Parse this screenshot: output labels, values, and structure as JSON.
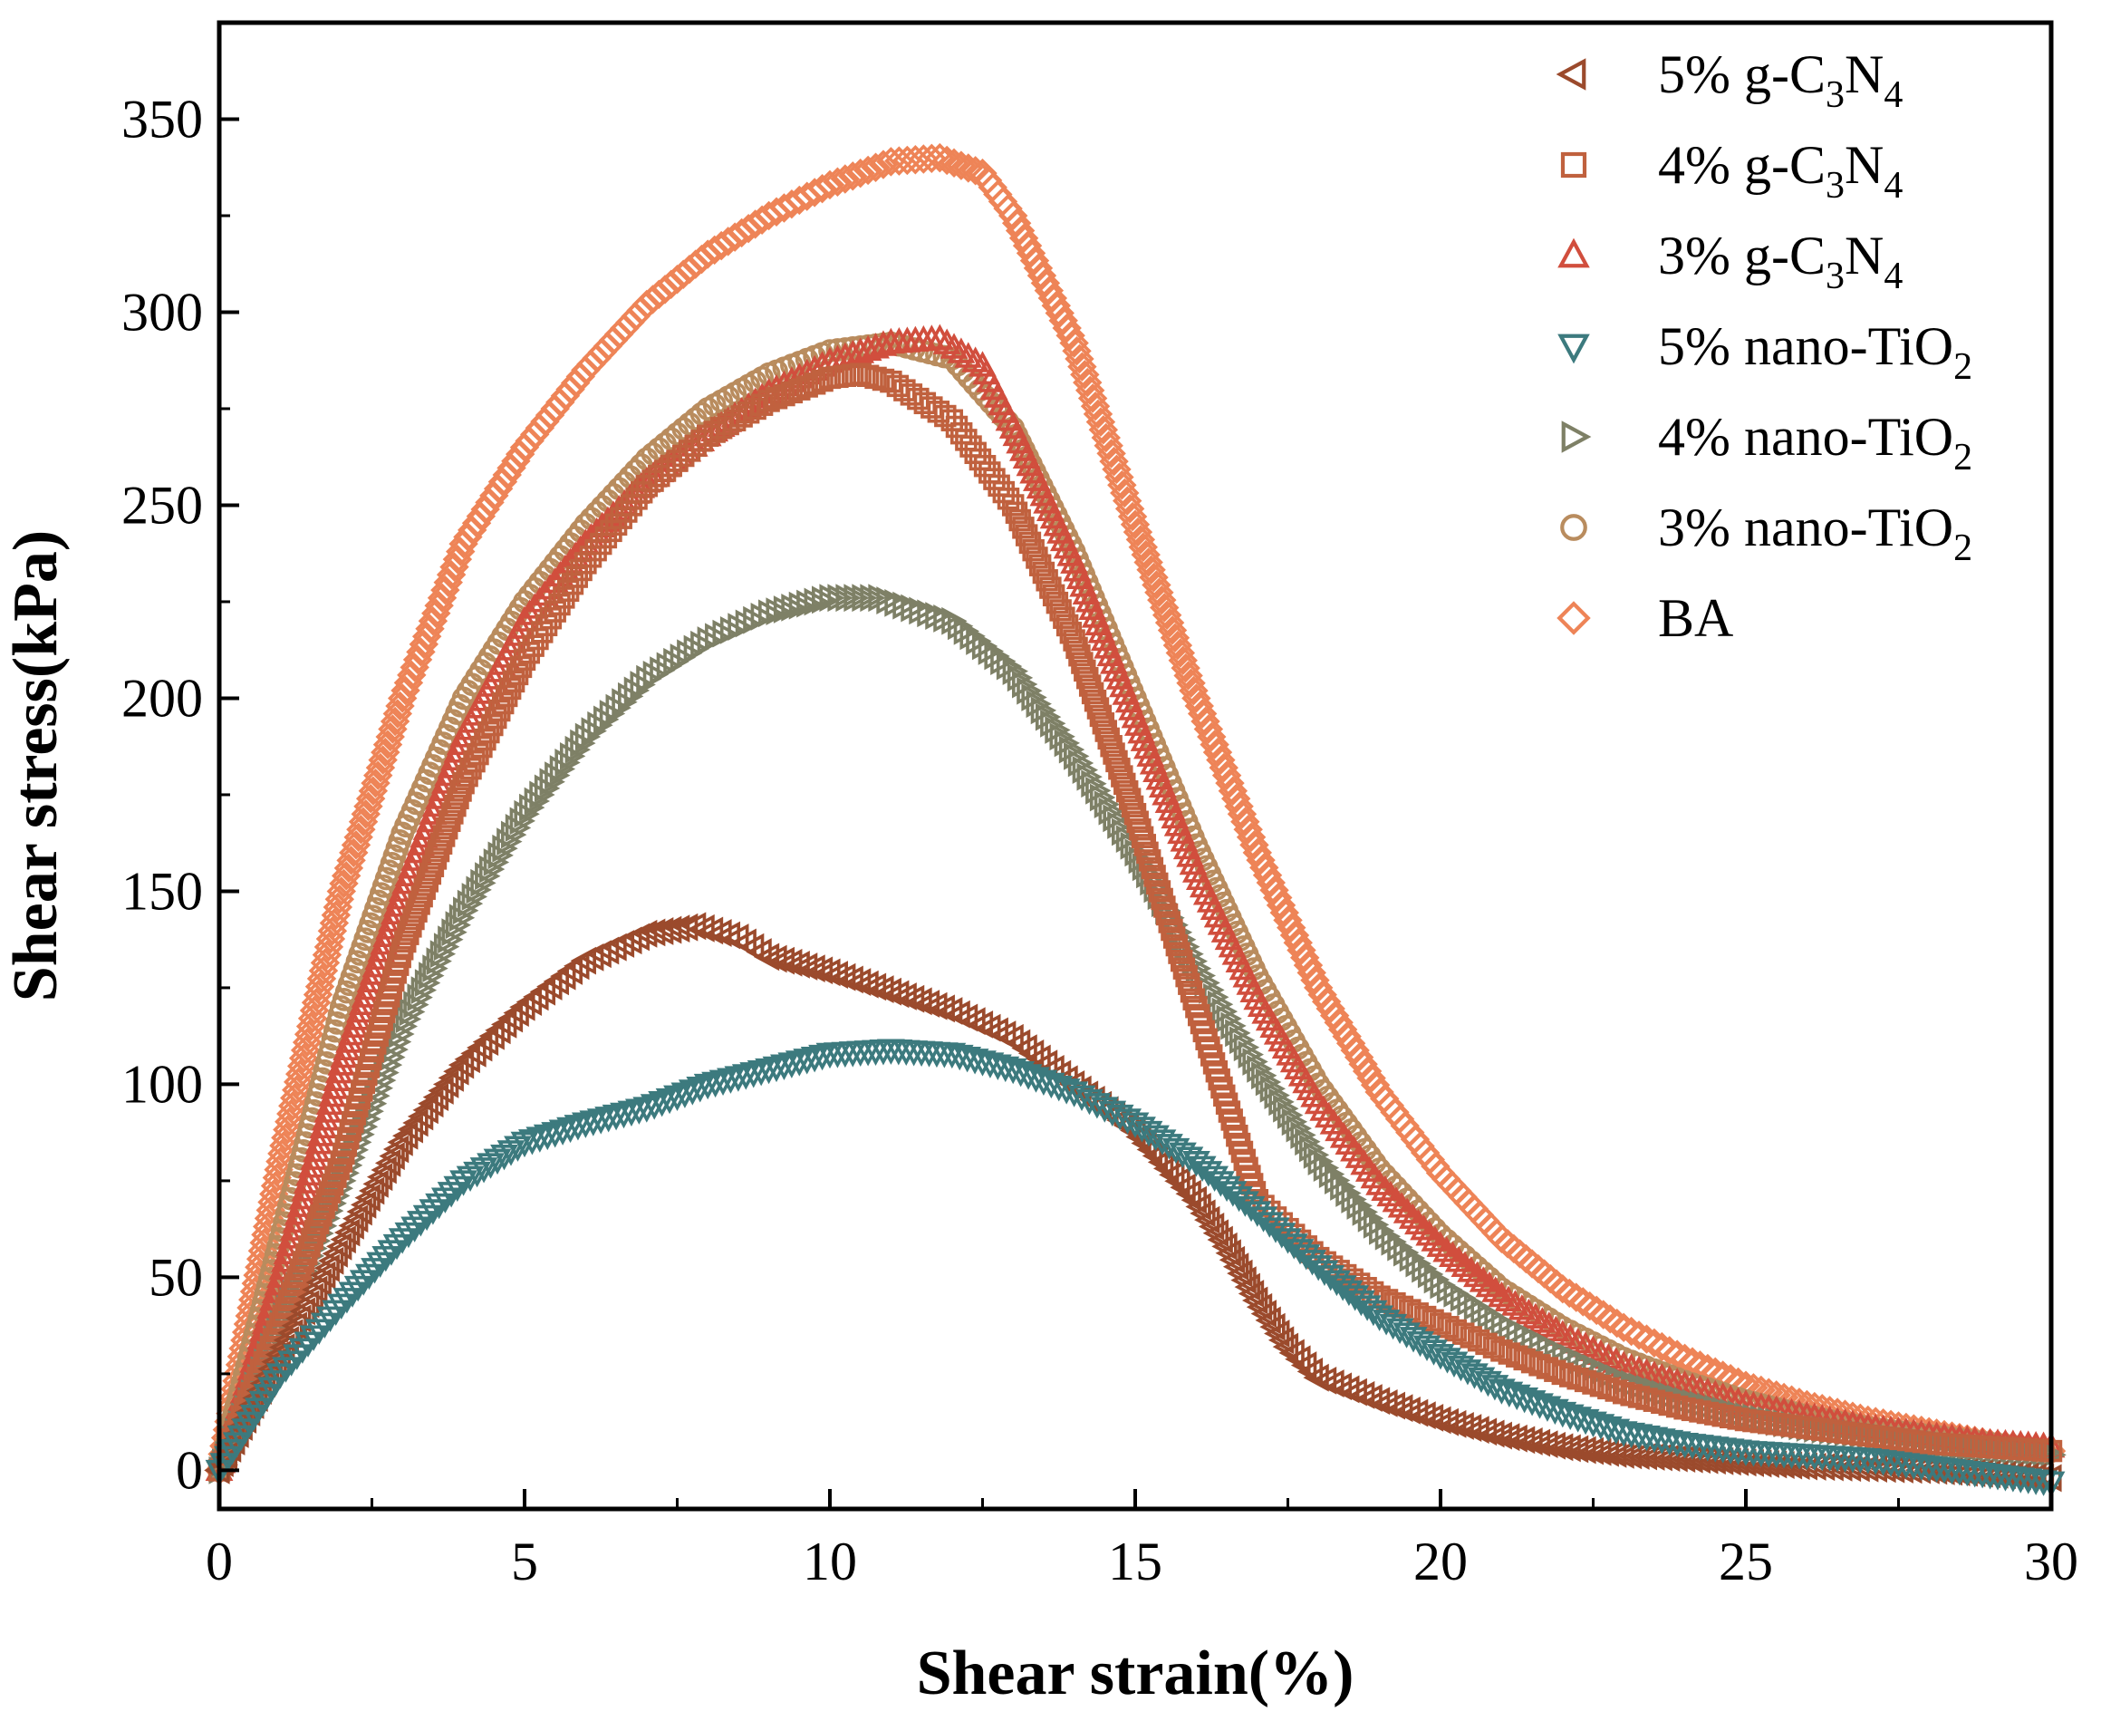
{
  "chart_data": {
    "type": "scatter",
    "title": "",
    "xlabel": "Shear strain(%)",
    "ylabel": "Shear stress(kPa)",
    "xlim": [
      0,
      30
    ],
    "ylim": [
      -10,
      375
    ],
    "xticks": [
      0,
      5,
      10,
      15,
      20,
      25,
      30
    ],
    "yticks": [
      0,
      50,
      100,
      150,
      200,
      250,
      300,
      350
    ],
    "x_tick_labels": [
      "0",
      "5",
      "10",
      "15",
      "20",
      "25",
      "30"
    ],
    "y_tick_labels": [
      "0",
      "50",
      "100",
      "150",
      "200",
      "250",
      "300",
      "350"
    ],
    "legend_position": "top-right",
    "series": [
      {
        "name": "5% g-C3N4",
        "legend": {
          "pre": "5% g-C",
          "sub1": "3",
          "mid": "N",
          "sub2": "4"
        },
        "marker": "triangle-left",
        "color": "#9B4A2C",
        "points": [
          [
            0,
            0
          ],
          [
            1,
            30
          ],
          [
            2,
            58
          ],
          [
            3,
            85
          ],
          [
            4,
            105
          ],
          [
            5,
            120
          ],
          [
            6,
            132
          ],
          [
            7,
            139
          ],
          [
            7.8,
            141
          ],
          [
            8.5,
            138
          ],
          [
            9,
            133
          ],
          [
            10,
            129
          ],
          [
            11,
            124
          ],
          [
            12,
            119
          ],
          [
            13,
            112
          ],
          [
            14,
            100
          ],
          [
            15,
            88
          ],
          [
            16,
            70
          ],
          [
            16.5,
            58
          ],
          [
            17,
            44
          ],
          [
            17.5,
            32
          ],
          [
            18,
            24
          ],
          [
            19,
            18
          ],
          [
            20,
            13
          ],
          [
            21,
            9
          ],
          [
            22,
            6
          ],
          [
            23,
            4
          ],
          [
            24,
            3
          ],
          [
            25,
            2
          ],
          [
            26,
            1
          ],
          [
            27,
            0.5
          ],
          [
            28,
            0
          ],
          [
            29,
            -1
          ],
          [
            30,
            -2
          ]
        ]
      },
      {
        "name": "4% g-C3N4",
        "legend": {
          "pre": "4% g-C",
          "sub1": "3",
          "mid": "N",
          "sub2": "4"
        },
        "marker": "square",
        "color": "#C0613E",
        "points": [
          [
            0,
            0
          ],
          [
            1,
            38
          ],
          [
            2,
            80
          ],
          [
            3,
            135
          ],
          [
            4,
            178
          ],
          [
            5,
            210
          ],
          [
            6,
            235
          ],
          [
            7,
            255
          ],
          [
            8,
            268
          ],
          [
            9,
            277
          ],
          [
            10,
            283
          ],
          [
            10.5,
            284
          ],
          [
            11,
            282
          ],
          [
            12,
            272
          ],
          [
            13,
            250
          ],
          [
            14,
            215
          ],
          [
            15,
            170
          ],
          [
            16,
            120
          ],
          [
            16.5,
            95
          ],
          [
            17,
            70
          ],
          [
            18,
            55
          ],
          [
            19,
            45
          ],
          [
            20,
            38
          ],
          [
            21,
            31
          ],
          [
            22,
            25
          ],
          [
            23,
            20
          ],
          [
            24,
            16
          ],
          [
            25,
            13
          ],
          [
            26,
            11
          ],
          [
            27,
            9
          ],
          [
            28,
            7
          ],
          [
            29,
            6
          ],
          [
            30,
            5
          ]
        ]
      },
      {
        "name": "3% g-C3N4",
        "legend": {
          "pre": "3% g-C",
          "sub1": "3",
          "mid": "N",
          "sub2": "4"
        },
        "marker": "triangle-up",
        "color": "#D14E3D",
        "points": [
          [
            0,
            0
          ],
          [
            1,
            50
          ],
          [
            2,
            105
          ],
          [
            3,
            150
          ],
          [
            4,
            190
          ],
          [
            5,
            220
          ],
          [
            6,
            240
          ],
          [
            7,
            256
          ],
          [
            8,
            268
          ],
          [
            9,
            279
          ],
          [
            10,
            287
          ],
          [
            11,
            292
          ],
          [
            11.8,
            293
          ],
          [
            12.5,
            286
          ],
          [
            13,
            270
          ],
          [
            14,
            235
          ],
          [
            15,
            195
          ],
          [
            16,
            155
          ],
          [
            17,
            122
          ],
          [
            18,
            95
          ],
          [
            19,
            74
          ],
          [
            20,
            58
          ],
          [
            21,
            45
          ],
          [
            22,
            35
          ],
          [
            23,
            27
          ],
          [
            24,
            22
          ],
          [
            25,
            17
          ],
          [
            26,
            14
          ],
          [
            27,
            11
          ],
          [
            28,
            9
          ],
          [
            29,
            7
          ],
          [
            30,
            6
          ]
        ]
      },
      {
        "name": "5% nano-TiO2",
        "legend": {
          "pre": "5% nano-TiO",
          "sub1": "2",
          "mid": "",
          "sub2": ""
        },
        "marker": "triangle-down",
        "color": "#3C7A7E",
        "points": [
          [
            0,
            0
          ],
          [
            1,
            25
          ],
          [
            2,
            43
          ],
          [
            3,
            60
          ],
          [
            4,
            75
          ],
          [
            5,
            85
          ],
          [
            6,
            90
          ],
          [
            7,
            94
          ],
          [
            8,
            100
          ],
          [
            9,
            104
          ],
          [
            10,
            108
          ],
          [
            11,
            109
          ],
          [
            12,
            108
          ],
          [
            13,
            104
          ],
          [
            14,
            98
          ],
          [
            15,
            90
          ],
          [
            16,
            80
          ],
          [
            17,
            67
          ],
          [
            18,
            53
          ],
          [
            19,
            40
          ],
          [
            20,
            30
          ],
          [
            21,
            21
          ],
          [
            22,
            15
          ],
          [
            23,
            10
          ],
          [
            24,
            7
          ],
          [
            25,
            5
          ],
          [
            26,
            4
          ],
          [
            27,
            3
          ],
          [
            28,
            1
          ],
          [
            29,
            -1
          ],
          [
            30,
            -3
          ]
        ]
      },
      {
        "name": "4% nano-TiO2",
        "legend": {
          "pre": "4% nano-TiO",
          "sub1": "2",
          "mid": "",
          "sub2": ""
        },
        "marker": "triangle-right",
        "color": "#7E8066",
        "points": [
          [
            0,
            0
          ],
          [
            1,
            38
          ],
          [
            2,
            75
          ],
          [
            3,
            115
          ],
          [
            4,
            145
          ],
          [
            5,
            170
          ],
          [
            6,
            190
          ],
          [
            7,
            205
          ],
          [
            8,
            215
          ],
          [
            9,
            222
          ],
          [
            10,
            226
          ],
          [
            10.8,
            226
          ],
          [
            12,
            220
          ],
          [
            13,
            207
          ],
          [
            14,
            185
          ],
          [
            15,
            160
          ],
          [
            16,
            130
          ],
          [
            17,
            104
          ],
          [
            18,
            80
          ],
          [
            19,
            62
          ],
          [
            20,
            48
          ],
          [
            21,
            38
          ],
          [
            22,
            30
          ],
          [
            23,
            23
          ],
          [
            24,
            18
          ],
          [
            25,
            14
          ],
          [
            26,
            11
          ],
          [
            27,
            9
          ],
          [
            28,
            7
          ],
          [
            29,
            5
          ],
          [
            30,
            4
          ]
        ]
      },
      {
        "name": "3% nano-TiO2",
        "legend": {
          "pre": "3% nano-TiO",
          "sub1": "2",
          "mid": "",
          "sub2": ""
        },
        "marker": "circle",
        "color": "#B98C5E",
        "points": [
          [
            0,
            0
          ],
          [
            1,
            60
          ],
          [
            2,
            120
          ],
          [
            3,
            165
          ],
          [
            4,
            200
          ],
          [
            5,
            225
          ],
          [
            6,
            245
          ],
          [
            7,
            262
          ],
          [
            8,
            275
          ],
          [
            9,
            284
          ],
          [
            10,
            290
          ],
          [
            11,
            292
          ],
          [
            12,
            288
          ],
          [
            13,
            270
          ],
          [
            14,
            238
          ],
          [
            15,
            200
          ],
          [
            16,
            162
          ],
          [
            17,
            128
          ],
          [
            18,
            100
          ],
          [
            19,
            78
          ],
          [
            20,
            61
          ],
          [
            21,
            47
          ],
          [
            22,
            37
          ],
          [
            23,
            29
          ],
          [
            24,
            23
          ],
          [
            25,
            18
          ],
          [
            26,
            14
          ],
          [
            27,
            11
          ],
          [
            28,
            9
          ],
          [
            29,
            7
          ],
          [
            30,
            5
          ]
        ]
      },
      {
        "name": "BA",
        "legend": {
          "pre": "BA",
          "sub1": "",
          "mid": "",
          "sub2": ""
        },
        "marker": "diamond",
        "color": "#EE8457",
        "points": [
          [
            0,
            0
          ],
          [
            0.5,
            40
          ],
          [
            1,
            80
          ],
          [
            2,
            150
          ],
          [
            3,
            200
          ],
          [
            4,
            240
          ],
          [
            5,
            265
          ],
          [
            6,
            285
          ],
          [
            7,
            302
          ],
          [
            8,
            315
          ],
          [
            9,
            325
          ],
          [
            10,
            333
          ],
          [
            11,
            339
          ],
          [
            11.8,
            340
          ],
          [
            12.5,
            336
          ],
          [
            13,
            325
          ],
          [
            14,
            292
          ],
          [
            15,
            245
          ],
          [
            16,
            200
          ],
          [
            17,
            160
          ],
          [
            18,
            125
          ],
          [
            19,
            98
          ],
          [
            20,
            77
          ],
          [
            21,
            60
          ],
          [
            22,
            47
          ],
          [
            23,
            37
          ],
          [
            24,
            29
          ],
          [
            25,
            22
          ],
          [
            26,
            17
          ],
          [
            27,
            13
          ],
          [
            28,
            10
          ],
          [
            29,
            7
          ],
          [
            30,
            5
          ]
        ]
      }
    ]
  }
}
